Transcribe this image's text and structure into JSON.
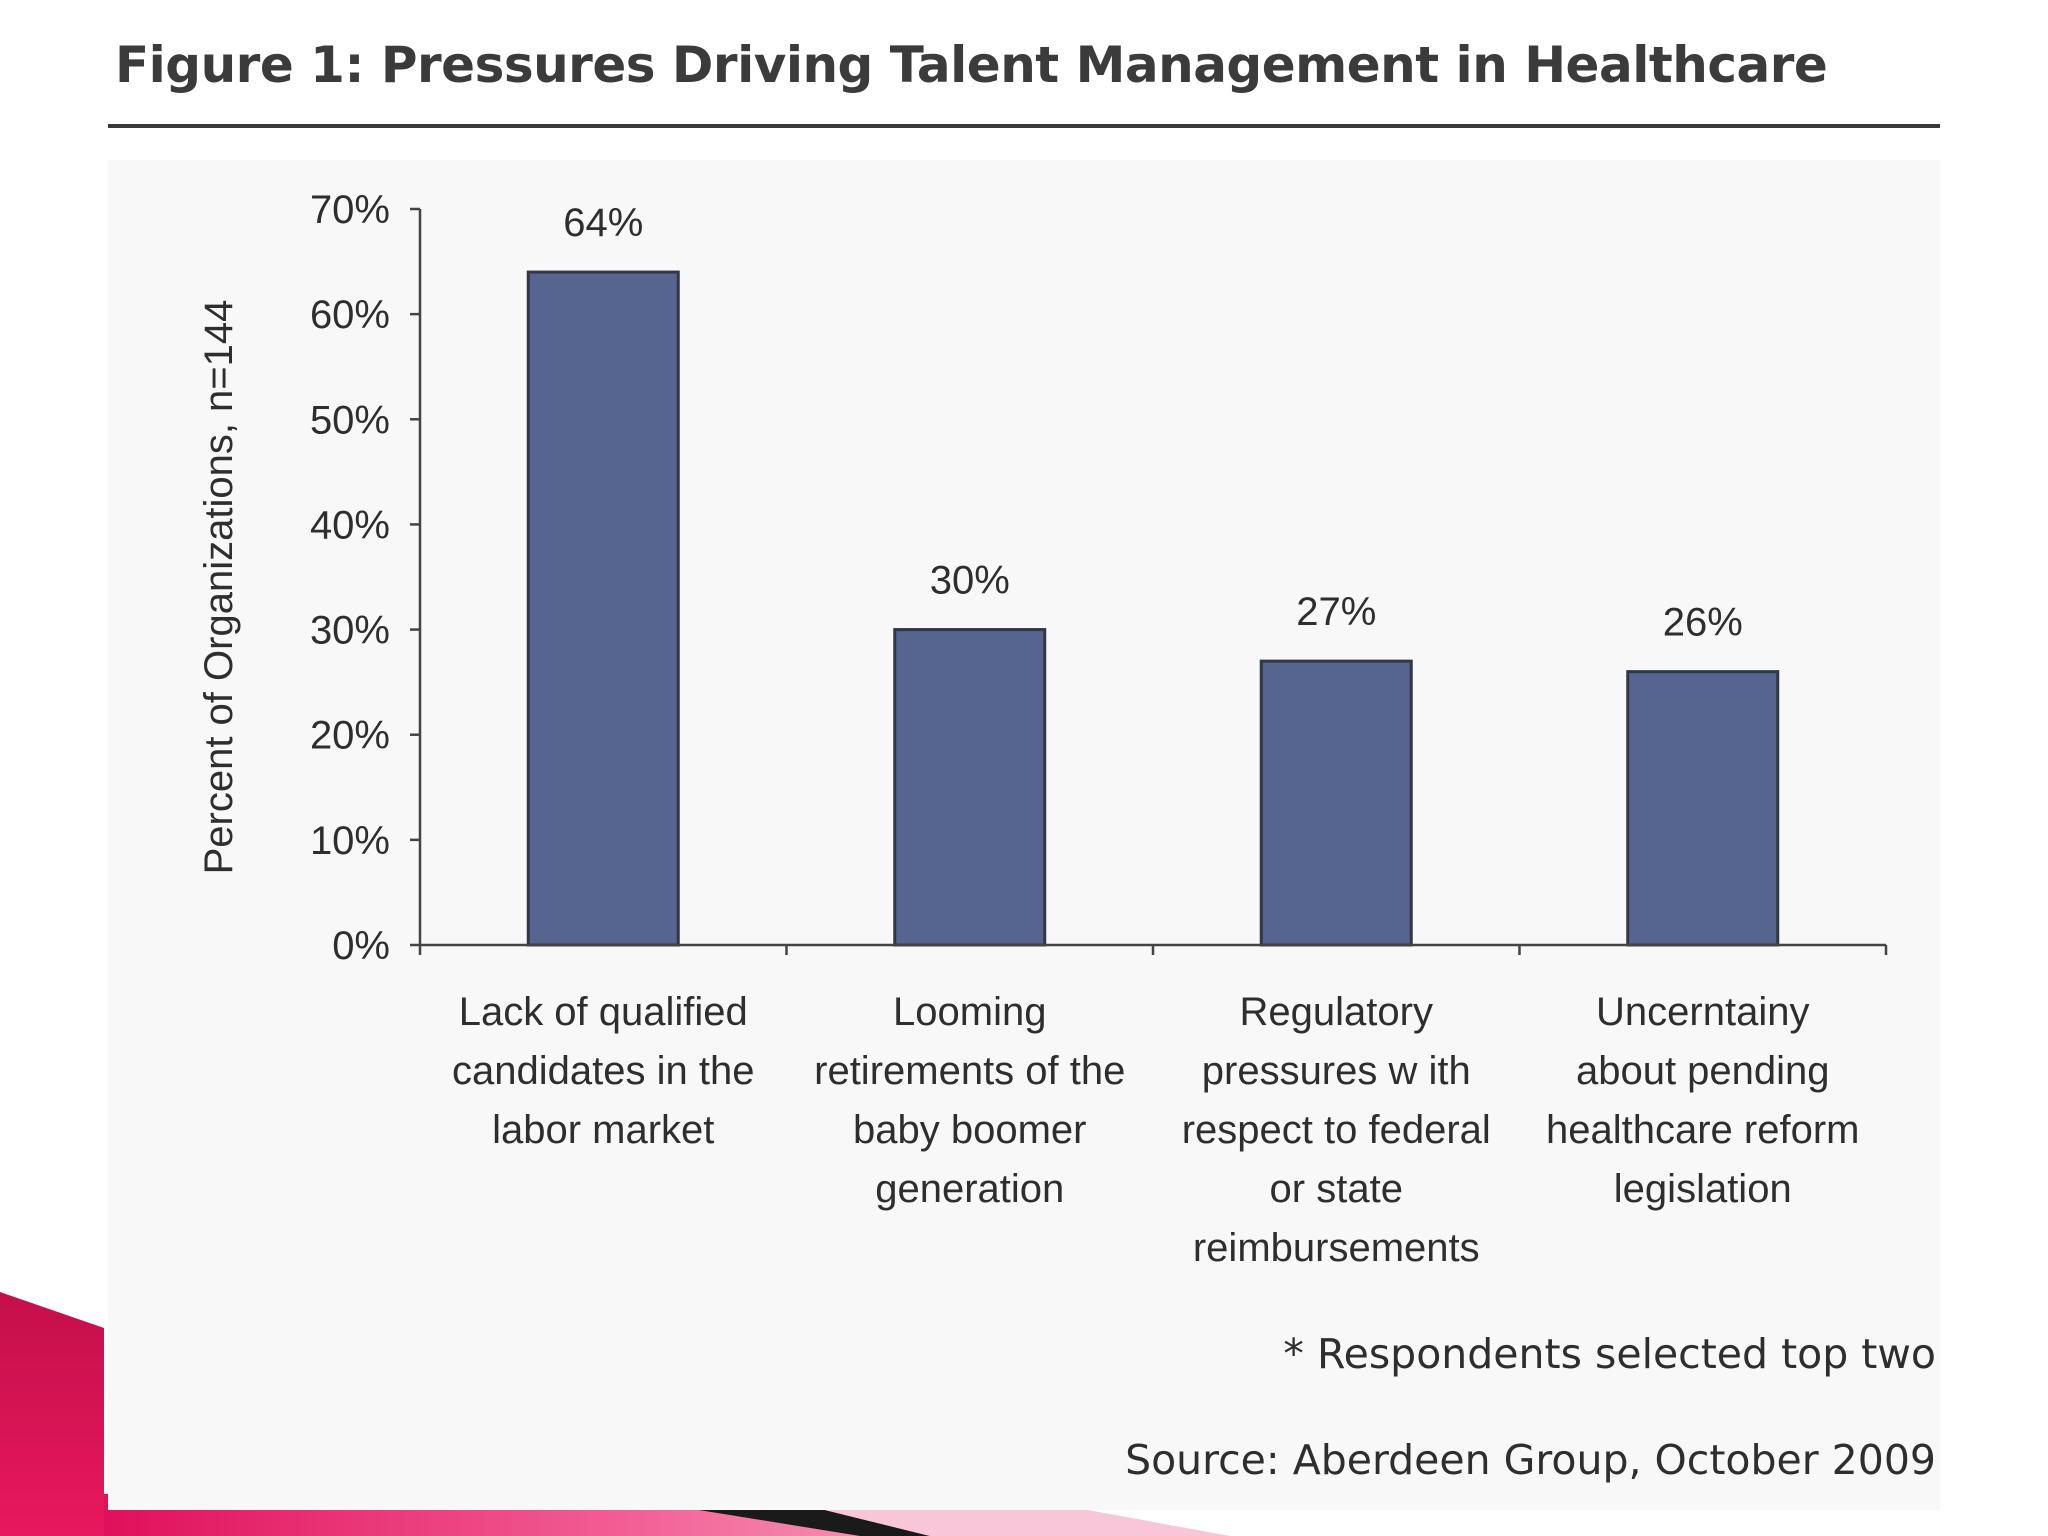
{
  "figure": {
    "title": "Figure 1: Pressures Driving Talent Management in Healthcare",
    "footnote": "* Respondents selected top two",
    "source": "Source: Aberdeen Group, October 2009"
  },
  "colors": {
    "bar_fill": "#56658f",
    "bar_stroke": "#333744",
    "accent_red": "#d0104f",
    "accent_pink": "#f7b6cf"
  },
  "chart_data": {
    "type": "bar",
    "title": "Figure 1: Pressures Driving Talent Management in Healthcare",
    "xlabel": "",
    "ylabel": "Percent of Organizations, n=144",
    "ylim": [
      0,
      70
    ],
    "yticks": [
      0,
      10,
      20,
      30,
      40,
      50,
      60,
      70
    ],
    "ytick_labels": [
      "0%",
      "10%",
      "20%",
      "30%",
      "40%",
      "50%",
      "60%",
      "70%"
    ],
    "grid": false,
    "legend": "none",
    "categories": [
      [
        "Lack of qualified",
        "candidates in the",
        "labor market"
      ],
      [
        "Looming",
        "retirements of the",
        "baby boomer",
        "generation"
      ],
      [
        "Regulatory",
        "pressures w ith",
        "respect to federal",
        "or state",
        "reimbursements"
      ],
      [
        "Uncerntainy",
        "about pending",
        "healthcare reform",
        "legislation"
      ]
    ],
    "values": [
      64,
      30,
      27,
      26
    ],
    "value_labels": [
      "64%",
      "30%",
      "27%",
      "26%"
    ]
  }
}
